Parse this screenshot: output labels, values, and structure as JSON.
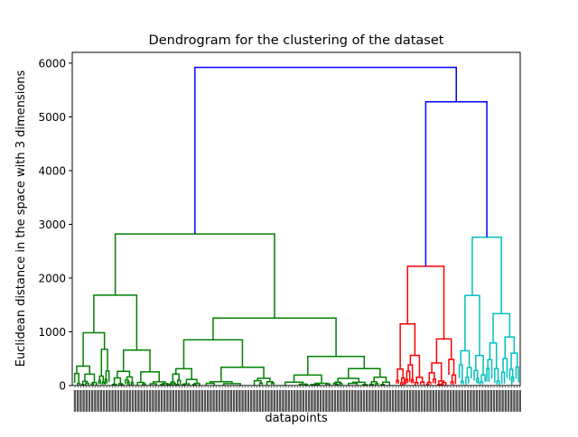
{
  "chart_data": {
    "type": "dendrogram",
    "title": "Dendrogram for the clustering of the dataset",
    "xlabel": "datapoints",
    "ylabel": "Euclidean distance in the space with 3 dimensions",
    "ylim": [
      0,
      6200
    ],
    "yticks": [
      0,
      1000,
      2000,
      3000,
      4000,
      5000,
      6000
    ],
    "colors": {
      "green": "#008000",
      "red": "#ff0000",
      "cyan": "#00bfbf",
      "blue": "#0000ff"
    },
    "clusters": [
      {
        "color": "green",
        "leaf_range": [
          0,
          0.72
        ],
        "root_height": 2820
      },
      {
        "color": "red",
        "leaf_range": [
          0.72,
          0.86
        ],
        "root_height": 2220
      },
      {
        "color": "cyan",
        "leaf_range": [
          0.86,
          1.0
        ],
        "root_height": 2760
      }
    ],
    "top_links": [
      {
        "color": "blue",
        "height": 5280,
        "joins": [
          "red",
          "cyan"
        ]
      },
      {
        "color": "blue",
        "height": 5920,
        "joins": [
          "green",
          "red+cyan"
        ]
      }
    ]
  }
}
